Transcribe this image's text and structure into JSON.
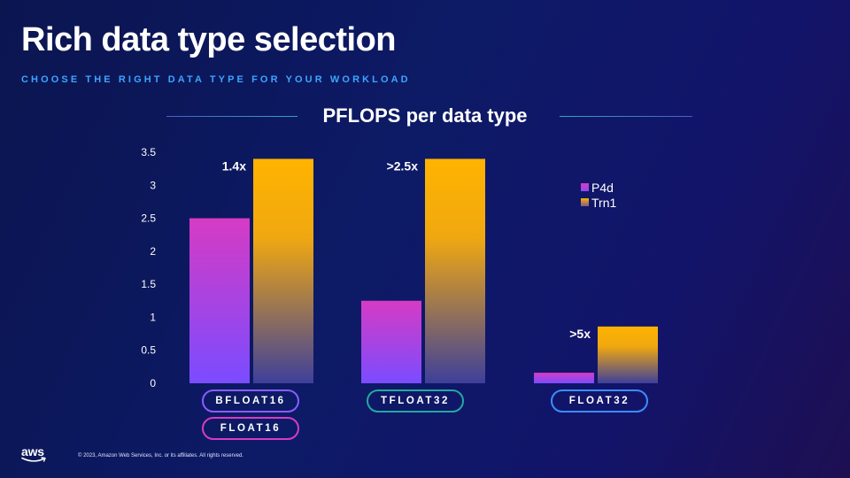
{
  "slide": {
    "title": "Rich data type selection",
    "subtitle": "CHOOSE THE RIGHT DATA TYPE FOR YOUR WORKLOAD",
    "copyright": "© 2023, Amazon Web Services, Inc. or its affiliates. All rights reserved.",
    "logo_text": "aws"
  },
  "colors": {
    "p4d_top": "#d63bc4",
    "p4d_bottom": "#8a4cf2",
    "trn1_top": "#ffb300",
    "trn1_bottom": "#4a4a9a",
    "subtitle": "#3da4ff",
    "bfloat16_outline": "#8a5cff",
    "float16_outline": "#d63bc4",
    "tfloat32_outline": "#23a8a0",
    "float32_outline": "#3b8dff"
  },
  "chart_data": {
    "type": "bar",
    "title": "PFLOPS per data type",
    "categories": [
      "BFLOAT16",
      "TFLOAT32",
      "FLOAT32"
    ],
    "category_pills": [
      [
        "BFLOAT16",
        "FLOAT16"
      ],
      [
        "TFLOAT32"
      ],
      [
        "FLOAT32"
      ]
    ],
    "series": [
      {
        "name": "P4d",
        "values": [
          2.5,
          1.25,
          0.16
        ]
      },
      {
        "name": "Trn1",
        "values": [
          3.4,
          3.4,
          0.86
        ]
      }
    ],
    "annotations": [
      "1.4x",
      ">2.5x",
      ">5x"
    ],
    "ylim": [
      0,
      3.5
    ],
    "yticks": [
      "0",
      "0.5",
      "1",
      "1.5",
      "2",
      "2.5",
      "3",
      "3.5"
    ],
    "xlabel": "",
    "ylabel": "",
    "grid": false,
    "legend_position": "right"
  }
}
